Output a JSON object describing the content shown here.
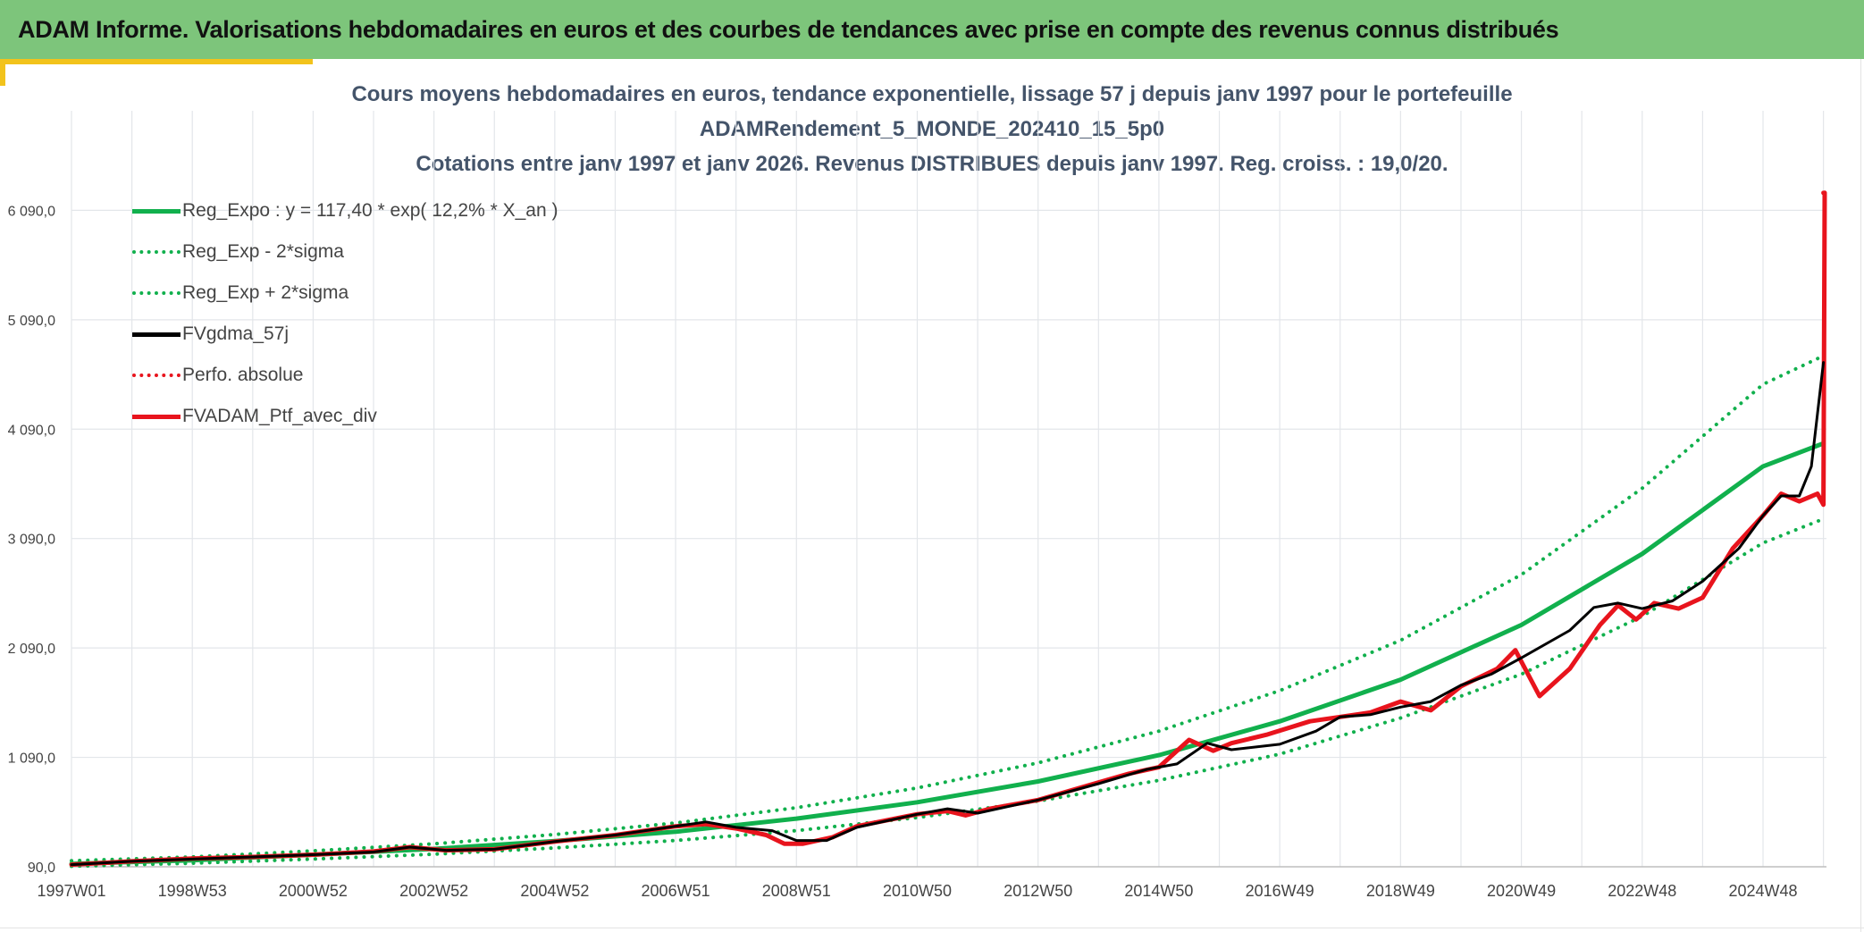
{
  "header": {
    "title": "ADAM Informe. Valorisations hebdomadaires en euros et des courbes de tendances avec prise en compte des revenus connus distribués"
  },
  "colors": {
    "header_bg": "#7dc57b",
    "accent": "#f2c31c",
    "trend_green": "#11b04d",
    "price_red": "#e8141d",
    "smooth_black": "#000000",
    "title_text": "#44546a"
  },
  "chart_data": {
    "type": "line",
    "title_lines": [
      "Cours moyens hebdomadaires en euros, tendance exponentielle, lissage 57 j depuis janv 1997 pour le portefeuille",
      "ADAMRendement_5_MONDE_202410_15_5p0",
      "Cotations entre janv 1997 et janv 2026. Revenus DISTRIBUES depuis janv 1997. Reg. croiss. : 19,0/20."
    ],
    "xlabel": "",
    "ylabel": "",
    "x_start_year": 1997.0,
    "x_end_year": 2026.05,
    "xlim": [
      1997.0,
      2026.05
    ],
    "ylim": [
      90,
      7000
    ],
    "grid": true,
    "legend_position": "top-left",
    "x_ticks": [
      {
        "label": "1997W01",
        "year": 1997.0
      },
      {
        "label": "1998W53",
        "year": 1999.0
      },
      {
        "label": "2000W52",
        "year": 2001.0
      },
      {
        "label": "2002W52",
        "year": 2003.0
      },
      {
        "label": "2004W52",
        "year": 2005.0
      },
      {
        "label": "2006W51",
        "year": 2007.0
      },
      {
        "label": "2008W51",
        "year": 2009.0
      },
      {
        "label": "2010W50",
        "year": 2011.0
      },
      {
        "label": "2012W50",
        "year": 2013.0
      },
      {
        "label": "2014W50",
        "year": 2015.0
      },
      {
        "label": "2016W49",
        "year": 2017.0
      },
      {
        "label": "2018W49",
        "year": 2019.0
      },
      {
        "label": "2020W49",
        "year": 2021.0
      },
      {
        "label": "2022W48",
        "year": 2023.0
      },
      {
        "label": "2024W48",
        "year": 2025.0
      }
    ],
    "y_ticks": [
      {
        "label": "90,0",
        "value": 90
      },
      {
        "label": "1 090,0",
        "value": 1090
      },
      {
        "label": "2 090,0",
        "value": 2090
      },
      {
        "label": "3 090,0",
        "value": 3090
      },
      {
        "label": "4 090,0",
        "value": 4090
      },
      {
        "label": "5 090,0",
        "value": 5090
      },
      {
        "label": "6 090,0",
        "value": 6090
      }
    ],
    "series": [
      {
        "name": "Reg_Expo : y = 117,40 * exp( 12,2% *  X_an )",
        "color": "#11b04d",
        "style": "solid",
        "width": 5,
        "x": [
          1997.0,
          1999.0,
          2001.0,
          2003.0,
          2005.0,
          2007.0,
          2009.0,
          2011.0,
          2013.0,
          2015.0,
          2017.0,
          2019.0,
          2021.0,
          2023.0,
          2025.0,
          2026.0
        ],
        "y": [
          117,
          150,
          200,
          253,
          325,
          410,
          530,
          680,
          870,
          1110,
          1420,
          1800,
          2300,
          2950,
          3750,
          3960
        ]
      },
      {
        "name": "Reg_Exp - 2*sigma",
        "color": "#11b04d",
        "style": "dotted",
        "width": 4,
        "x": [
          1997.0,
          1999.0,
          2001.0,
          2003.0,
          2005.0,
          2007.0,
          2009.0,
          2011.0,
          2013.0,
          2015.0,
          2017.0,
          2019.0,
          2021.0,
          2023.0,
          2025.0,
          2026.0
        ],
        "y": [
          95,
          123,
          160,
          205,
          262,
          330,
          420,
          540,
          690,
          880,
          1120,
          1450,
          1850,
          2380,
          3050,
          3270
        ]
      },
      {
        "name": "Reg_Exp + 2*sigma",
        "color": "#11b04d",
        "style": "dotted",
        "width": 4,
        "x": [
          1997.0,
          1999.0,
          2001.0,
          2003.0,
          2005.0,
          2007.0,
          2009.0,
          2011.0,
          2013.0,
          2015.0,
          2017.0,
          2019.0,
          2021.0,
          2023.0,
          2025.0,
          2026.0
        ],
        "y": [
          145,
          180,
          235,
          300,
          385,
          490,
          630,
          810,
          1040,
          1330,
          1700,
          2160,
          2760,
          3550,
          4500,
          4760
        ]
      },
      {
        "name": "FVgdma_57j",
        "color": "#000000",
        "style": "solid",
        "width": 3,
        "x": [
          1997.0,
          1998.0,
          1999.0,
          2000.0,
          2001.0,
          2002.0,
          2002.6,
          2003.2,
          2004.0,
          2005.0,
          2006.0,
          2007.0,
          2007.5,
          2008.0,
          2008.6,
          2009.0,
          2009.5,
          2010.0,
          2011.0,
          2011.5,
          2012.0,
          2013.0,
          2014.0,
          2014.8,
          2015.3,
          2015.8,
          2016.2,
          2017.0,
          2017.6,
          2018.0,
          2018.5,
          2019.0,
          2019.5,
          2020.0,
          2020.5,
          2021.0,
          2021.8,
          2022.2,
          2022.6,
          2023.0,
          2023.5,
          2024.0,
          2024.6,
          2025.0,
          2025.3,
          2025.6,
          2025.8,
          2026.0
        ],
        "y": [
          110,
          140,
          160,
          180,
          200,
          225,
          270,
          240,
          250,
          320,
          380,
          460,
          500,
          450,
          420,
          330,
          330,
          450,
          570,
          620,
          580,
          700,
          850,
          980,
          1030,
          1220,
          1160,
          1210,
          1330,
          1460,
          1480,
          1550,
          1600,
          1750,
          1850,
          2000,
          2250,
          2460,
          2500,
          2450,
          2520,
          2700,
          3000,
          3300,
          3480,
          3480,
          3750,
          4700
        ]
      },
      {
        "name": "Perfo. absolue",
        "color": "#e8141d",
        "style": "dotted",
        "width": 4,
        "x": [
          2026.0
        ],
        "y": [
          6250
        ]
      },
      {
        "name": "FVADAM_Ptf_avec_div",
        "color": "#e8141d",
        "style": "solid",
        "width": 5,
        "x": [
          1997.0,
          1998.0,
          1999.0,
          2000.0,
          2001.0,
          2002.0,
          2002.6,
          2003.2,
          2004.0,
          2005.0,
          2006.0,
          2006.5,
          2007.0,
          2007.5,
          2008.0,
          2008.5,
          2008.8,
          2009.1,
          2009.6,
          2010.0,
          2011.0,
          2011.5,
          2011.8,
          2012.2,
          2013.0,
          2014.0,
          2014.5,
          2015.0,
          2015.5,
          2015.9,
          2016.2,
          2016.8,
          2017.5,
          2018.0,
          2018.5,
          2019.0,
          2019.5,
          2020.0,
          2020.6,
          2020.9,
          2021.3,
          2021.8,
          2022.3,
          2022.6,
          2022.9,
          2023.2,
          2023.6,
          2024.0,
          2024.5,
          2025.0,
          2025.3,
          2025.6,
          2025.9,
          2026.0,
          2026.02
        ],
        "y": [
          110,
          140,
          165,
          180,
          200,
          230,
          270,
          240,
          250,
          320,
          380,
          420,
          460,
          480,
          440,
          380,
          300,
          300,
          360,
          460,
          570,
          600,
          560,
          620,
          700,
          860,
          940,
          1000,
          1250,
          1150,
          1220,
          1300,
          1420,
          1460,
          1500,
          1600,
          1520,
          1740,
          1900,
          2070,
          1650,
          1900,
          2300,
          2480,
          2350,
          2500,
          2450,
          2550,
          3000,
          3300,
          3500,
          3430,
          3500,
          3400,
          6250
        ]
      }
    ]
  }
}
